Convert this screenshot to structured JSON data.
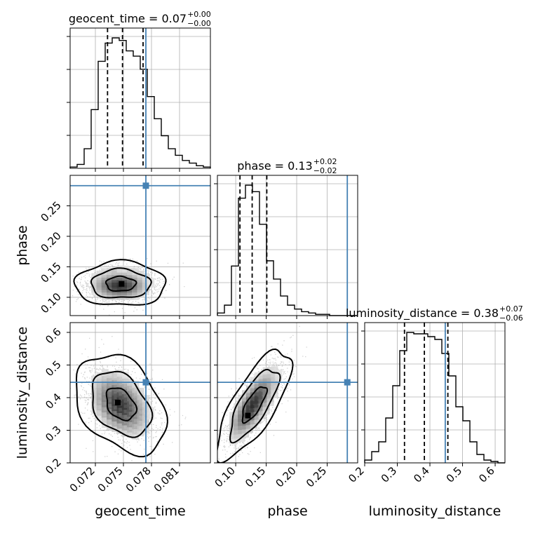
{
  "chart_data": {
    "type": "corner",
    "parameters": [
      {
        "name": "geocent_time",
        "xlabel": "geocent_time",
        "ticks": [
          0.072,
          0.075,
          0.078,
          0.081
        ],
        "tick_labels": [
          "0.072",
          "0.075",
          "0.078",
          "0.081"
        ],
        "range": [
          0.0693,
          0.0843
        ],
        "truth": 0.0774,
        "median": 0.0749,
        "q16": 0.0733,
        "q84": 0.0771,
        "title_main": "geocent_time = 0.07",
        "title_plus": "+0.00",
        "title_minus": "−0.00",
        "hist_counts": [
          0.01,
          0.03,
          0.15,
          0.45,
          0.82,
          0.96,
          1.0,
          0.98,
          0.9,
          0.86,
          0.76,
          0.55,
          0.38,
          0.25,
          0.15,
          0.1,
          0.06,
          0.04,
          0.02,
          0.01
        ]
      },
      {
        "name": "phase",
        "xlabel": "phase",
        "ylabel": "phase",
        "ticks": [
          0.1,
          0.15,
          0.2,
          0.25
        ],
        "tick_labels": [
          "0.10",
          "0.15",
          "0.20",
          "0.25"
        ],
        "range": [
          0.07,
          0.3
        ],
        "truth": 0.283,
        "median": 0.127,
        "q16": 0.107,
        "q84": 0.151,
        "title_main": "phase = 0.13",
        "title_plus": "+0.02",
        "title_minus": "−0.02",
        "hist_counts": [
          0.02,
          0.08,
          0.38,
          0.9,
          1.0,
          0.95,
          0.7,
          0.42,
          0.28,
          0.15,
          0.08,
          0.05,
          0.03,
          0.02,
          0.01,
          0.01,
          0.0,
          0.0,
          0.0,
          0.0
        ]
      },
      {
        "name": "luminosity_distance",
        "xlabel": "luminosity_distance",
        "ylabel": "luminosity_distance",
        "ticks": [
          0.2,
          0.3,
          0.4,
          0.5,
          0.6
        ],
        "tick_labels": [
          "0.2",
          "0.3",
          "0.4",
          "0.5",
          "0.6"
        ],
        "range": [
          0.2,
          0.63
        ],
        "truth": 0.447,
        "median": 0.383,
        "q16": 0.322,
        "q84": 0.455,
        "title_main": "luminosity_distance = 0.38",
        "title_plus": "+0.07",
        "title_minus": "−0.06",
        "hist_counts": [
          0.02,
          0.08,
          0.15,
          0.32,
          0.55,
          0.8,
          0.93,
          0.92,
          0.92,
          0.9,
          0.88,
          0.78,
          0.62,
          0.4,
          0.3,
          0.15,
          0.06,
          0.02,
          0.01,
          0.0
        ]
      }
    ],
    "pairs": [
      {
        "x": "geocent_time",
        "y": "phase",
        "center": [
          0.0747,
          0.122
        ],
        "spread": [
          0.0016,
          0.012
        ],
        "corr": 0.0,
        "peak": [
          0.0748,
          0.122
        ]
      },
      {
        "x": "geocent_time",
        "y": "luminosity_distance",
        "center": [
          0.0747,
          0.38
        ],
        "spread": [
          0.0016,
          0.05
        ],
        "corr": -0.35,
        "peak": [
          0.0744,
          0.385
        ]
      },
      {
        "x": "phase",
        "y": "luminosity_distance",
        "center": [
          0.13,
          0.38
        ],
        "spread": [
          0.02,
          0.055
        ],
        "corr": 0.75,
        "peak": [
          0.12,
          0.345
        ]
      }
    ],
    "contour_levels": [
      0.39,
      0.86,
      0.99
    ],
    "grid": true,
    "truth_color": "#4682b4"
  }
}
